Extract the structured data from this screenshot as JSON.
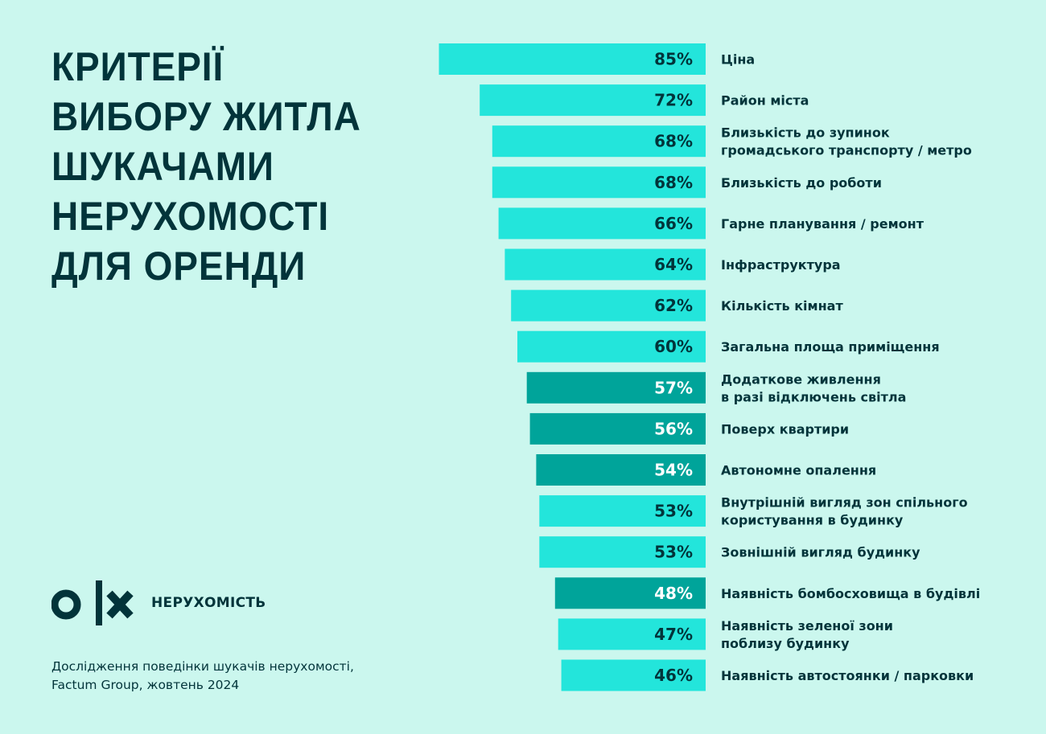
{
  "title_lines": [
    "КРИТЕРІЇ",
    "ВИБОРУ ЖИТЛА",
    "ШУКАЧАМИ",
    "НЕРУХОМОСТІ",
    "ДЛЯ ОРЕНДИ"
  ],
  "brand": {
    "logo": "OLX",
    "label": "НЕРУХОМІСТЬ"
  },
  "source_lines": [
    "Дослідження поведінки шукачів нерухомості,",
    "Factum Group, жовтень 2024"
  ],
  "colors": {
    "background": "#cbf7ee",
    "bar_light": "#23e5db",
    "bar_dark": "#00a49a",
    "text": "#02343a"
  },
  "chart_data": {
    "type": "bar",
    "orientation": "horizontal",
    "unit": "%",
    "categories": [
      [
        "Ціна"
      ],
      [
        "Район міста"
      ],
      [
        "Близькість до зупинок",
        "громадського транспорту / метро"
      ],
      [
        "Близькість до роботи"
      ],
      [
        "Гарне планування / ремонт"
      ],
      [
        "Інфраструктура"
      ],
      [
        "Кількість кімнат"
      ],
      [
        "Загальна площа приміщення"
      ],
      [
        "Додаткове живлення",
        "в разі відключень світла"
      ],
      [
        "Поверх квартири"
      ],
      [
        "Автономне опалення"
      ],
      [
        "Внутрішній вигляд зон спільного",
        "користування в будинку"
      ],
      [
        "Зовнішній вигляд будинку"
      ],
      [
        "Наявність бомбосховища в будівлі"
      ],
      [
        "Наявність зеленої зони",
        "поблизу будинку"
      ],
      [
        "Наявність автостоянки / парковки"
      ]
    ],
    "values": [
      85,
      72,
      68,
      68,
      66,
      64,
      62,
      60,
      57,
      56,
      54,
      53,
      53,
      48,
      47,
      46
    ],
    "labels": [
      "85%",
      "72%",
      "68%",
      "68%",
      "66%",
      "64%",
      "62%",
      "60%",
      "57%",
      "56%",
      "54%",
      "53%",
      "53%",
      "48%",
      "47%",
      "46%"
    ],
    "highlighted": [
      false,
      false,
      false,
      false,
      false,
      false,
      false,
      false,
      true,
      true,
      true,
      false,
      false,
      true,
      false,
      false
    ],
    "grid": false
  }
}
